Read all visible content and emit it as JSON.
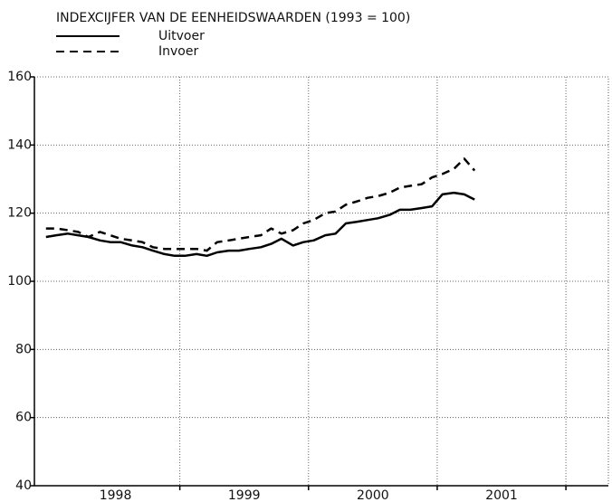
{
  "chart_data": {
    "type": "line",
    "title": "INDEXCIJFER VAN DE EENHEIDSWAARDEN (1993 = 100)",
    "x": [
      1997.96,
      1998.04,
      1998.13,
      1998.21,
      1998.29,
      1998.38,
      1998.46,
      1998.54,
      1998.63,
      1998.71,
      1998.79,
      1998.88,
      1998.96,
      1999.04,
      1999.13,
      1999.21,
      1999.29,
      1999.38,
      1999.46,
      1999.54,
      1999.63,
      1999.71,
      1999.79,
      1999.88,
      1999.96,
      2000.04,
      2000.13,
      2000.21,
      2000.29,
      2000.38,
      2000.46,
      2000.54,
      2000.63,
      2000.71,
      2000.79,
      2000.88,
      2000.96,
      2001.04,
      2001.13,
      2001.21,
      2001.29
    ],
    "series": [
      {
        "name": "Uitvoer",
        "color": "#000000",
        "style": "solid",
        "values": [
          113,
          113.5,
          114,
          113.5,
          113,
          112,
          111.5,
          111.5,
          110.5,
          110,
          109,
          108,
          107.5,
          107.5,
          108,
          107.5,
          108.5,
          109,
          109,
          109.5,
          110,
          111,
          112.5,
          110.5,
          111.5,
          112,
          113.5,
          114,
          117,
          117.5,
          118,
          118.5,
          119.5,
          121,
          121,
          121.5,
          122,
          125.5,
          126,
          125.5,
          124
        ]
      },
      {
        "name": "Invoer",
        "color": "#000000",
        "style": "dashed",
        "values": [
          115.5,
          115.5,
          115,
          114.5,
          113,
          114.5,
          113.5,
          112.5,
          112,
          111.5,
          110,
          109.5,
          109.5,
          109.5,
          109.5,
          109,
          111.5,
          112,
          112.5,
          113,
          113.5,
          115.5,
          114,
          115,
          117,
          118,
          120,
          120.5,
          122.5,
          123.5,
          124.5,
          125,
          126,
          127.5,
          128,
          128.5,
          130.5,
          131.5,
          133,
          136,
          132.5
        ]
      }
    ],
    "xlim": [
      1997.87,
      2002.33
    ],
    "xticks": [
      {
        "value": 1998.5,
        "label": "1998"
      },
      {
        "value": 1999.5,
        "label": "1999"
      },
      {
        "value": 2000.5,
        "label": "2000"
      },
      {
        "value": 2001.5,
        "label": "2001"
      }
    ],
    "xgrid": [
      1999,
      2000,
      2001,
      2002
    ],
    "ylim": [
      40,
      160
    ],
    "yticks": [
      40,
      60,
      80,
      100,
      120,
      140,
      160
    ],
    "grid": true,
    "legend": "top-left"
  }
}
